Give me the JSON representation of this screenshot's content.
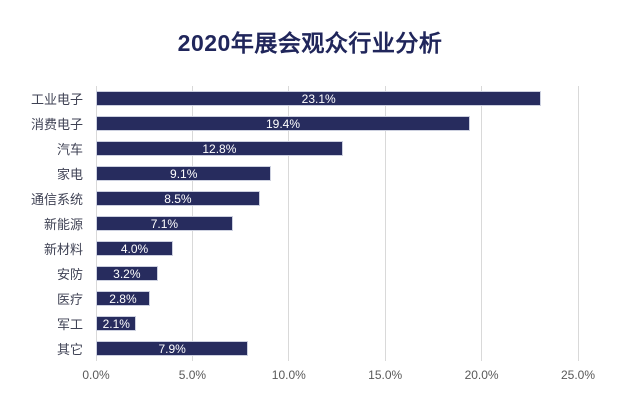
{
  "chart_data": {
    "type": "bar",
    "orientation": "horizontal",
    "title": "2020年展会观众行业分析",
    "categories": [
      "工业电子",
      "消费电子",
      "汽车",
      "家电",
      "通信系统",
      "新能源",
      "新材料",
      "安防",
      "医疗",
      "军工",
      "其它"
    ],
    "values": [
      23.1,
      19.4,
      12.8,
      9.1,
      8.5,
      7.1,
      4.0,
      3.2,
      2.8,
      2.1,
      7.9
    ],
    "value_labels": [
      "23.1%",
      "19.4%",
      "12.8%",
      "9.1%",
      "8.5%",
      "7.1%",
      "4.0%",
      "3.2%",
      "2.8%",
      "2.1%",
      "7.9%"
    ],
    "x_ticks": [
      "0.0%",
      "5.0%",
      "10.0%",
      "15.0%",
      "20.0%",
      "25.0%"
    ],
    "xlim": [
      0,
      25
    ],
    "xlabel": "",
    "ylabel": "",
    "grid": "vertical-only",
    "legend": "none",
    "value_label_position": "inside-center"
  },
  "colors": {
    "background": "#ffffff",
    "bar": "#272c5e",
    "bar_value_label": "#ffffff",
    "title": "#20265b",
    "category_label": "#3f4254",
    "axis_label": "#595959",
    "gridline": "#d9d9d9"
  }
}
